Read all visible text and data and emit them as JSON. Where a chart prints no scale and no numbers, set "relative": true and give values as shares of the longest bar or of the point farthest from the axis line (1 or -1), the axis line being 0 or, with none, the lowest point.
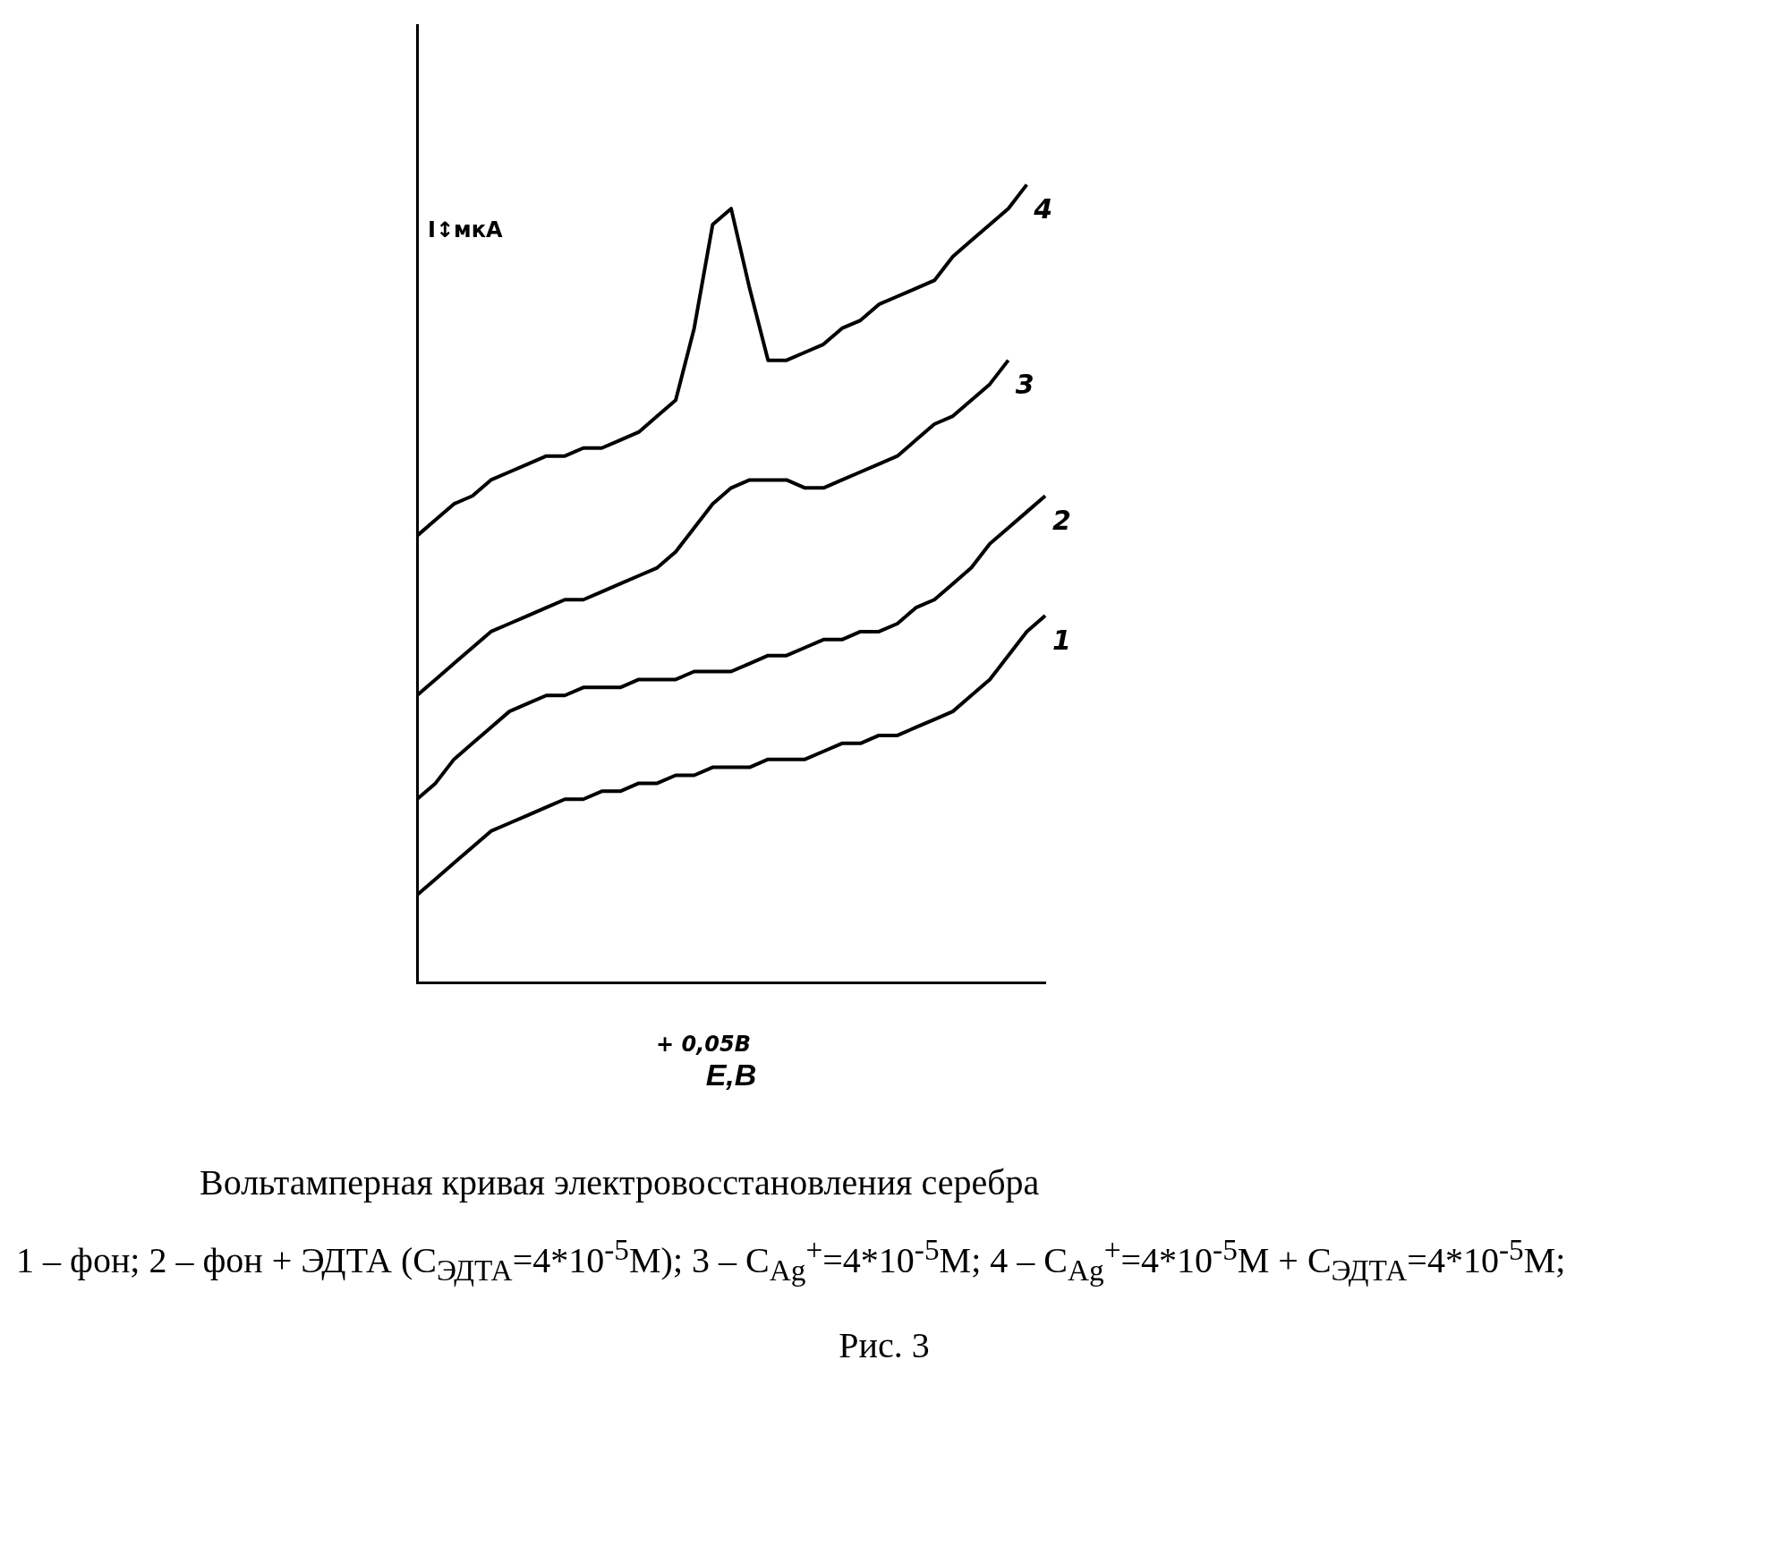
{
  "chart_data": {
    "type": "line",
    "relative": true,
    "title": "Вольтамперная кривая электровосстановления серебра",
    "xlabel": "E,В",
    "grid": false,
    "categories": [
      null,
      null,
      null,
      null,
      null,
      null,
      null,
      null,
      null,
      null,
      null,
      null,
      null,
      null,
      null,
      null,
      null,
      null,
      null,
      null,
      null,
      null,
      null,
      null,
      null,
      null,
      null,
      null,
      null,
      null,
      null,
      null,
      null,
      null,
      null
    ],
    "series": [
      {
        "name": "1",
        "color": "#000000",
        "values": [
          0.11,
          0.13,
          0.15,
          0.17,
          0.19,
          0.2,
          0.21,
          0.22,
          0.23,
          0.23,
          0.24,
          0.24,
          0.25,
          0.25,
          0.26,
          0.26,
          0.27,
          0.27,
          0.27,
          0.28,
          0.28,
          0.28,
          0.29,
          0.3,
          0.3,
          0.31,
          0.31,
          0.32,
          0.33,
          0.34,
          0.36,
          0.38,
          0.41,
          0.44,
          0.46
        ]
      },
      {
        "name": "2",
        "color": "#000000",
        "values": [
          0.23,
          0.25,
          0.28,
          0.3,
          0.32,
          0.34,
          0.35,
          0.36,
          0.36,
          0.37,
          0.37,
          0.37,
          0.38,
          0.38,
          0.38,
          0.39,
          0.39,
          0.39,
          0.4,
          0.41,
          0.41,
          0.42,
          0.43,
          0.43,
          0.44,
          0.44,
          0.45,
          0.47,
          0.48,
          0.5,
          0.52,
          0.55,
          0.57,
          0.59,
          0.61
        ]
      },
      {
        "name": "3",
        "color": "#000000",
        "values": [
          0.36,
          0.38,
          0.4,
          0.42,
          0.44,
          0.45,
          0.46,
          0.47,
          0.48,
          0.48,
          0.49,
          0.5,
          0.51,
          0.52,
          0.54,
          0.57,
          0.6,
          0.62,
          0.63,
          0.63,
          0.63,
          0.62,
          0.62,
          0.63,
          0.64,
          0.65,
          0.66,
          0.68,
          0.7,
          0.71,
          0.73,
          0.75,
          0.78,
          null,
          null
        ]
      },
      {
        "name": "4",
        "color": "#000000",
        "values": [
          0.56,
          0.58,
          0.6,
          0.61,
          0.63,
          0.64,
          0.65,
          0.66,
          0.66,
          0.67,
          0.67,
          0.68,
          0.69,
          0.71,
          0.73,
          0.82,
          0.95,
          0.97,
          0.87,
          0.78,
          0.78,
          0.79,
          0.8,
          0.82,
          0.83,
          0.85,
          0.86,
          0.87,
          0.88,
          0.91,
          0.93,
          0.95,
          0.97,
          1,
          null
        ]
      }
    ],
    "annotations": [
      "+ 0,05В",
      "I↕мкА",
      "1 – фон; 2 – фон + ЭДТА (C$_{ЭДТА}$=4*10$^{-5}$М);  3 – C$_{Ag}$$^{+}$=4*10$^{-5}$М;  4 – C$_{Ag}$$^{+}$=4*10$^{-5}$М + C$_{ЭДТА}$=4*10$^{-5}$М;",
      "Рис. 3"
    ]
  }
}
